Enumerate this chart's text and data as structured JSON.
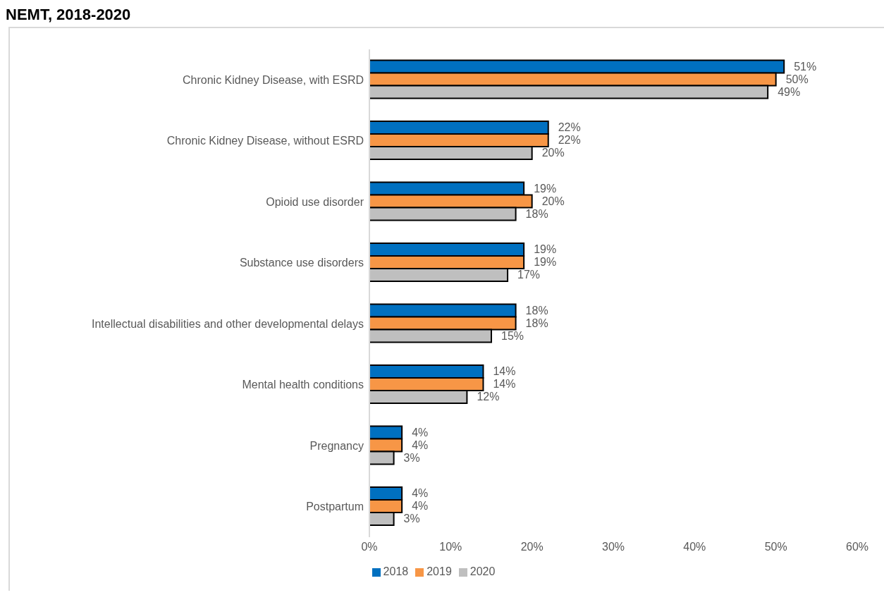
{
  "chart_data": {
    "type": "bar",
    "orientation": "horizontal",
    "title": "NEMT, 2018-2020",
    "categories": [
      "Chronic Kidney Disease, with ESRD",
      "Chronic Kidney Disease, without ESRD",
      "Opioid use disorder",
      "Substance use disorders",
      "Intellectual disabilities and other developmental delays",
      "Mental health conditions",
      "Pregnancy",
      "Postpartum"
    ],
    "series": [
      {
        "name": "2018",
        "color": "#0070c0",
        "values": [
          51,
          22,
          19,
          19,
          18,
          14,
          4,
          4
        ],
        "value_labels": [
          "51%",
          "22%",
          "19%",
          "19%",
          "18%",
          "14%",
          "4%",
          "4%"
        ]
      },
      {
        "name": "2019",
        "color": "#f79646",
        "values": [
          50,
          22,
          20,
          19,
          18,
          14,
          4,
          4
        ],
        "value_labels": [
          "50%",
          "22%",
          "20%",
          "19%",
          "18%",
          "14%",
          "4%",
          "4%"
        ]
      },
      {
        "name": "2020",
        "color": "#bfbfbf",
        "values": [
          49,
          20,
          18,
          17,
          15,
          12,
          3,
          3
        ],
        "value_labels": [
          "49%",
          "20%",
          "18%",
          "17%",
          "15%",
          "12%",
          "3%",
          "3%"
        ]
      }
    ],
    "xlim": [
      0,
      60
    ],
    "xticks": [
      {
        "value": 0,
        "label": "0%"
      },
      {
        "value": 10,
        "label": "10%"
      },
      {
        "value": 20,
        "label": "20%"
      },
      {
        "value": 30,
        "label": "30%"
      },
      {
        "value": 40,
        "label": "40%"
      },
      {
        "value": 50,
        "label": "50%"
      },
      {
        "value": 60,
        "label": "60%"
      }
    ],
    "grid": false,
    "legend": "bottom"
  }
}
